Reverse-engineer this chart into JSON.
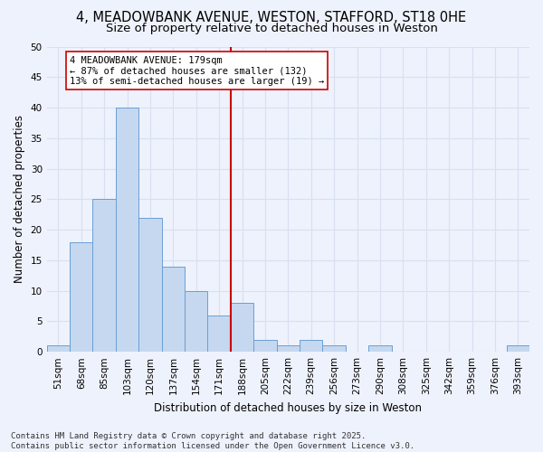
{
  "title_line1": "4, MEADOWBANK AVENUE, WESTON, STAFFORD, ST18 0HE",
  "title_line2": "Size of property relative to detached houses in Weston",
  "xlabel": "Distribution of detached houses by size in Weston",
  "ylabel": "Number of detached properties",
  "categories": [
    "51sqm",
    "68sqm",
    "85sqm",
    "103sqm",
    "120sqm",
    "137sqm",
    "154sqm",
    "171sqm",
    "188sqm",
    "205sqm",
    "222sqm",
    "239sqm",
    "256sqm",
    "273sqm",
    "290sqm",
    "308sqm",
    "325sqm",
    "342sqm",
    "359sqm",
    "376sqm",
    "393sqm"
  ],
  "values": [
    1,
    18,
    25,
    40,
    22,
    14,
    10,
    6,
    8,
    2,
    1,
    2,
    1,
    0,
    1,
    0,
    0,
    0,
    0,
    0,
    1
  ],
  "bar_color": "#c5d8f0",
  "bar_edge_color": "#6a9fd4",
  "vline_index": 7.5,
  "vline_color": "#cc0000",
  "annotation_text": "4 MEADOWBANK AVENUE: 179sqm\n← 87% of detached houses are smaller (132)\n13% of semi-detached houses are larger (19) →",
  "annotation_box_facecolor": "#ffffff",
  "annotation_box_edgecolor": "#cc0000",
  "ylim": [
    0,
    50
  ],
  "yticks": [
    0,
    5,
    10,
    15,
    20,
    25,
    30,
    35,
    40,
    45,
    50
  ],
  "background_color": "#eef2fc",
  "grid_color": "#d8dff0",
  "footer_text": "Contains HM Land Registry data © Crown copyright and database right 2025.\nContains public sector information licensed under the Open Government Licence v3.0.",
  "title1_fontsize": 10.5,
  "title2_fontsize": 9.5,
  "xlabel_fontsize": 8.5,
  "ylabel_fontsize": 8.5,
  "tick_fontsize": 7.5,
  "annotation_fontsize": 7.5,
  "footer_fontsize": 6.5
}
